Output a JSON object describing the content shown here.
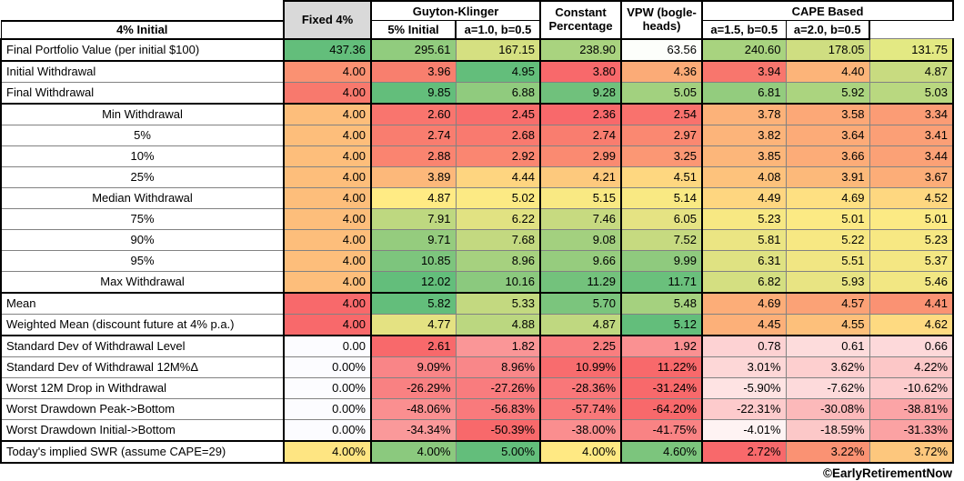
{
  "header": {
    "fixed": "Fixed 4%",
    "guyton_klinger": "Guyton-Klinger",
    "gk_sub_1": "4% Initial",
    "gk_sub_2": "5% Initial",
    "constant_line1": "Constant",
    "constant_line2": "Percentage",
    "vpw_line1": "VPW (bogle-",
    "vpw_line2": "heads)",
    "cape": "CAPE Based",
    "cape_sub_1": "a=1.0, b=0.5",
    "cape_sub_2": "a=1.5, b=0.5",
    "cape_sub_3": "a=2.0, b=0.5"
  },
  "colors": {
    "scale_red": "#F8696B",
    "scale_yellow": "#FFEB84",
    "scale_green": "#63BE7B",
    "header_fixed_bg": "#D9D9D9",
    "grid_thin": "#828282",
    "grid_thick": "#000000"
  },
  "rows": [
    {
      "label": "Final Portfolio Value (per initial $100)",
      "center": false,
      "group_end": true,
      "values": [
        "437.36",
        "295.61",
        "167.15",
        "238.90",
        "63.56",
        "240.60",
        "178.05",
        "131.75"
      ],
      "colors": [
        "#63BE7B",
        "#91CC7E",
        "#D5E081",
        "#A9D37F",
        "#FDFEFB",
        "#A8D37F",
        "#CFDE81",
        "#E3E983"
      ]
    },
    {
      "label": "Initial Withdrawal",
      "center": false,
      "group_end": false,
      "values": [
        "4.00",
        "3.96",
        "4.95",
        "3.80",
        "4.36",
        "3.94",
        "4.40",
        "4.87"
      ],
      "colors": [
        "#FA9172",
        "#F87F6E",
        "#63BE7B",
        "#F8696B",
        "#FBAB77",
        "#F8766D",
        "#FCB479",
        "#C8DB80"
      ]
    },
    {
      "label": "Final Withdrawal",
      "center": false,
      "group_end": true,
      "values": [
        "4.00",
        "9.85",
        "6.88",
        "9.28",
        "5.05",
        "6.81",
        "5.92",
        "5.03"
      ],
      "colors": [
        "#F8796D",
        "#63BE7B",
        "#90CB7E",
        "#70C17C",
        "#A2D17F",
        "#93CC7E",
        "#ABD47F",
        "#B9D880"
      ]
    },
    {
      "label": "Min Withdrawal",
      "center": true,
      "group_end": false,
      "values": [
        "4.00",
        "2.60",
        "2.45",
        "2.36",
        "2.54",
        "3.78",
        "3.58",
        "3.34"
      ],
      "colors": [
        "#FDBE7B",
        "#F9756E",
        "#F86E6C",
        "#F8696B",
        "#F9726D",
        "#FCB279",
        "#FCA877",
        "#FB9C75"
      ]
    },
    {
      "label": "5%",
      "center": true,
      "group_end": false,
      "values": [
        "4.00",
        "2.74",
        "2.68",
        "2.74",
        "2.97",
        "3.82",
        "3.64",
        "3.41"
      ],
      "colors": [
        "#FDBE7B",
        "#F97D6F",
        "#F97A6F",
        "#F97D6F",
        "#FA8871",
        "#FCB47A",
        "#FCAB78",
        "#FB9F76"
      ]
    },
    {
      "label": "10%",
      "center": true,
      "group_end": false,
      "values": [
        "4.00",
        "2.88",
        "2.92",
        "2.99",
        "3.25",
        "3.85",
        "3.66",
        "3.44"
      ],
      "colors": [
        "#FDBE7B",
        "#FA8470",
        "#FA8671",
        "#FA8A71",
        "#FB9774",
        "#FCB67A",
        "#FCAC78",
        "#FBA176"
      ]
    },
    {
      "label": "25%",
      "center": true,
      "group_end": false,
      "values": [
        "4.00",
        "3.89",
        "4.44",
        "4.21",
        "4.51",
        "4.08",
        "3.91",
        "3.67"
      ],
      "colors": [
        "#FDBE7B",
        "#FCB87A",
        "#FED580",
        "#FDC97D",
        "#FED780",
        "#FDC27C",
        "#FCB97A",
        "#FCAD78"
      ]
    },
    {
      "label": "Median Withdrawal",
      "center": true,
      "group_end": false,
      "values": [
        "4.00",
        "4.87",
        "5.02",
        "5.15",
        "5.14",
        "4.49",
        "4.69",
        "4.52"
      ],
      "colors": [
        "#FDBE7B",
        "#FFEB84",
        "#FCEA84",
        "#F9E983",
        "#F9E983",
        "#FED680",
        "#FEE082",
        "#FED780"
      ]
    },
    {
      "label": "75%",
      "center": true,
      "group_end": false,
      "values": [
        "4.00",
        "7.91",
        "6.22",
        "7.46",
        "6.05",
        "5.23",
        "5.01",
        "5.01"
      ],
      "colors": [
        "#FDBE7B",
        "#BED880",
        "#E1E282",
        "#C7DA80",
        "#E5E383",
        "#F7E883",
        "#FCEA84",
        "#FCEA84"
      ]
    },
    {
      "label": "90%",
      "center": true,
      "group_end": false,
      "values": [
        "4.00",
        "9.71",
        "7.68",
        "9.08",
        "7.52",
        "5.81",
        "5.22",
        "5.23"
      ],
      "colors": [
        "#FDBE7B",
        "#95CC7E",
        "#C3D980",
        "#A3D07F",
        "#C6DA80",
        "#EBE583",
        "#F7E883",
        "#F7E883"
      ]
    },
    {
      "label": "95%",
      "center": true,
      "group_end": false,
      "values": [
        "4.00",
        "10.85",
        "8.96",
        "9.66",
        "9.99",
        "6.31",
        "5.51",
        "5.37"
      ],
      "colors": [
        "#FDBE7B",
        "#7DC57D",
        "#A6D17F",
        "#96CC7E",
        "#8FCA7E",
        "#DFE282",
        "#F1E683",
        "#F4E783"
      ]
    },
    {
      "label": "Max Withdrawal",
      "center": true,
      "group_end": true,
      "values": [
        "4.00",
        "12.02",
        "10.16",
        "11.29",
        "11.71",
        "6.82",
        "5.93",
        "5.46"
      ],
      "colors": [
        "#FDBE7B",
        "#63BE7B",
        "#8BC97E",
        "#73C27C",
        "#6AC07C",
        "#D4DF81",
        "#E8E483",
        "#F2E783"
      ]
    },
    {
      "label": "Mean",
      "center": false,
      "group_end": false,
      "values": [
        "4.00",
        "5.82",
        "5.33",
        "5.70",
        "5.48",
        "4.69",
        "4.57",
        "4.41"
      ],
      "colors": [
        "#F8696B",
        "#63BE7B",
        "#C3D980",
        "#7BC57D",
        "#A5D17F",
        "#FCAD78",
        "#FBA276",
        "#FA9273"
      ]
    },
    {
      "label": "Weighted Mean (discount future at 4% p.a.)",
      "center": false,
      "group_end": true,
      "values": [
        "4.00",
        "4.77",
        "4.88",
        "4.87",
        "5.12",
        "4.45",
        "4.55",
        "4.62"
      ],
      "colors": [
        "#F8696B",
        "#E4E282",
        "#BBD780",
        "#BFD880",
        "#63BE7B",
        "#FCB079",
        "#FDC07B",
        "#FEDA81"
      ]
    },
    {
      "label": "Standard Dev of Withdrawal Level",
      "center": false,
      "group_end": false,
      "values": [
        "0.00",
        "2.61",
        "1.82",
        "2.25",
        "1.92",
        "0.78",
        "0.61",
        "0.66"
      ],
      "colors": [
        "#FCFCFF",
        "#F8696B",
        "#FA9697",
        "#F97E7F",
        "#FA9192",
        "#FDD2D3",
        "#FDDCDC",
        "#FDD9DA"
      ]
    },
    {
      "label": "Standard Dev of Withdrawal 12M%Δ",
      "center": false,
      "group_end": false,
      "values": [
        "0.00%",
        "9.09%",
        "8.96%",
        "10.99%",
        "11.22%",
        "3.01%",
        "3.62%",
        "4.22%"
      ],
      "colors": [
        "#FCFCFF",
        "#F98587",
        "#F98789",
        "#F86C6E",
        "#F8696B",
        "#FDD7D7",
        "#FDCFCF",
        "#FCC7C7"
      ]
    },
    {
      "label": "Worst 12M Drop in Withdrawal",
      "center": false,
      "group_end": false,
      "values": [
        "0.00%",
        "-26.29%",
        "-27.26%",
        "-28.36%",
        "-31.24%",
        "-5.90%",
        "-7.62%",
        "-10.62%"
      ],
      "colors": [
        "#FCFCFF",
        "#F98182",
        "#F97C7E",
        "#F97779",
        "#F8696B",
        "#FEE3E3",
        "#FDDADB",
        "#FDCCCD"
      ]
    },
    {
      "label": "Worst Drawdown Peak->Bottom",
      "center": false,
      "group_end": false,
      "values": [
        "0.00%",
        "-48.06%",
        "-56.83%",
        "-57.74%",
        "-64.20%",
        "-22.31%",
        "-30.08%",
        "-38.81%"
      ],
      "colors": [
        "#FCFCFF",
        "#FA8F90",
        "#F97A7C",
        "#F97879",
        "#F8696B",
        "#FDCBCC",
        "#FCB9BA",
        "#FBA4A6"
      ]
    },
    {
      "label": "Worst Drawdown Initial->Bottom",
      "center": false,
      "group_end": true,
      "values": [
        "0.00%",
        "-34.34%",
        "-50.39%",
        "-38.00%",
        "-41.75%",
        "-4.01%",
        "-18.59%",
        "-31.33%"
      ],
      "colors": [
        "#FCFCFF",
        "#FA999A",
        "#F8696B",
        "#FA8E8F",
        "#F98384",
        "#FEF3F3",
        "#FCC8C8",
        "#FBA2A3"
      ]
    },
    {
      "label": "Today's implied SWR (assume CAPE=29)",
      "center": false,
      "group_end": true,
      "values": [
        "4.00%",
        "4.00%",
        "5.00%",
        "4.00%",
        "4.60%",
        "2.72%",
        "3.22%",
        "3.72%"
      ],
      "colors": [
        "#FEE582",
        "#8BC97E",
        "#63BE7B",
        "#FFE983",
        "#7CC57D",
        "#F8696B",
        "#FA9273",
        "#FDC77D"
      ]
    }
  ],
  "footer": {
    "credit": "©EarlyRetirementNow"
  }
}
